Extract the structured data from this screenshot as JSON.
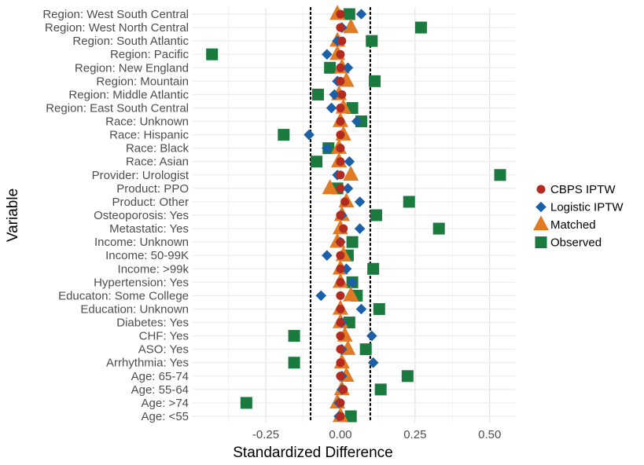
{
  "chart_data": {
    "type": "scatter",
    "title": "",
    "xlabel": "Standardized Difference",
    "ylabel": "Variable",
    "xlim": [
      -0.495,
      0.585
    ],
    "x_ticks": [
      -0.25,
      0,
      0.25,
      0.5
    ],
    "x_tick_labels": [
      "-0.25",
      "0.00",
      "0.25",
      "0.50"
    ],
    "reference_lines": [
      -0.1,
      0.1
    ],
    "grid": true,
    "legend_position": "right",
    "categories": [
      "Region: West South Central",
      "Region: West North Central",
      "Region: South Atlantic",
      "Region: Pacific",
      "Region: New England",
      "Region: Mountain",
      "Region: Middle Atlantic",
      "Region: East South Central",
      "Race: Unknown",
      "Race: Hispanic",
      "Race: Black",
      "Race: Asian",
      "Provider: Urologist",
      "Product: PPO",
      "Product: Other",
      "Osteoporosis: Yes",
      "Metastatic: Yes",
      "Income: Unknown",
      "Income: 50-99K",
      "Income: >99k",
      "Hypertension: Yes",
      "Educaton: Some College",
      "Education: Unknown",
      "Diabetes: Yes",
      "CHF: Yes",
      "ASO: Yes",
      "Arrhythmia: Yes",
      "Age: 65-74",
      "Age: 55-64",
      "Age: >74",
      "Age: <55"
    ],
    "series": [
      {
        "name": "Observed",
        "shape": "square",
        "color": "#1b7a3e",
        "values": [
          0.03,
          0.27,
          0.105,
          -0.43,
          -0.035,
          0.115,
          -0.075,
          0.04,
          0.07,
          -0.19,
          -0.04,
          -0.08,
          0.535,
          -0.01,
          0.23,
          0.12,
          0.33,
          0.04,
          0.025,
          0.11,
          0.04,
          0.055,
          0.13,
          0.03,
          -0.155,
          0.085,
          -0.155,
          0.225,
          0.135,
          -0.315,
          0.035
        ]
      },
      {
        "name": "Matched",
        "shape": "triangle",
        "color": "#e07b24",
        "values": [
          -0.01,
          0.035,
          -0.01,
          -0.01,
          0.005,
          0.02,
          -0.005,
          0.01,
          0.0,
          0.01,
          -0.005,
          -0.005,
          0.035,
          -0.035,
          0.02,
          0.005,
          0.0,
          -0.01,
          0.01,
          0.0,
          0.0,
          0.035,
          0.0,
          0.0,
          0.015,
          0.025,
          0.005,
          0.02,
          0.005,
          -0.01,
          0.0
        ]
      },
      {
        "name": "Logistic IPTW",
        "shape": "diamond",
        "color": "#1a5fa8",
        "values": [
          0.07,
          0.005,
          -0.01,
          -0.045,
          0.025,
          -0.01,
          -0.02,
          -0.03,
          0.055,
          -0.105,
          -0.045,
          0.03,
          -0.01,
          0.025,
          0.065,
          0.005,
          0.065,
          0.0,
          -0.045,
          0.02,
          0.04,
          -0.065,
          0.07,
          0.005,
          0.105,
          0.005,
          0.11,
          0.005,
          0.005,
          -0.005,
          -0.005
        ]
      },
      {
        "name": "CBPS IPTW",
        "shape": "circle",
        "color": "#b22a20",
        "values": [
          0.0,
          0.0,
          0.005,
          0.0,
          0.0,
          0.0,
          0.005,
          0.0,
          0.0,
          0.0,
          0.0,
          0.0,
          0.0,
          0.0,
          0.015,
          0.0,
          0.01,
          0.0,
          0.0,
          0.0,
          0.0,
          0.0,
          0.0,
          0.0,
          0.0,
          0.0,
          0.0,
          0.0,
          0.01,
          0.0,
          0.0
        ]
      }
    ],
    "legend": [
      "CBPS IPTW",
      "Logistic IPTW",
      "Matched",
      "Observed"
    ]
  }
}
